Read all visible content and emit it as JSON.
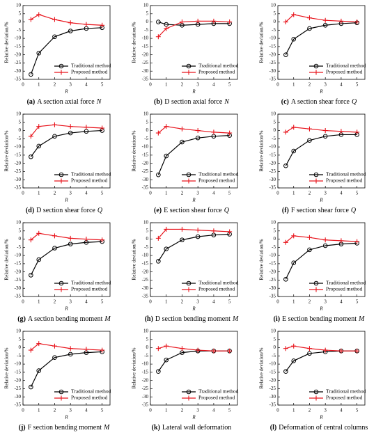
{
  "chart_data": [
    {
      "type": "line",
      "xlabel": "R",
      "ylabel": "Relative deviation/%",
      "x": [
        0.5,
        1,
        2,
        3,
        4,
        5
      ],
      "xlim": [
        0,
        5.5
      ],
      "xticks": [
        0,
        1,
        2,
        3,
        4,
        5
      ],
      "ylim": [
        -35,
        10
      ],
      "yticks": [
        -35,
        -30,
        -25,
        -20,
        -15,
        -10,
        -5,
        0,
        5,
        10
      ],
      "series": [
        {
          "name": "Traditional method",
          "color": "#000000",
          "marker": "circle",
          "values": [
            -32,
            -19,
            -9,
            -5.5,
            -4,
            -3.5
          ]
        },
        {
          "name": "Proposed method",
          "color": "#e8141c",
          "marker": "plus",
          "values": [
            1.5,
            4.5,
            1.5,
            -0.5,
            -1.5,
            -2
          ]
        }
      ],
      "caption_label": "(a)",
      "caption_text": "A section axial force",
      "caption_symbol": "N"
    },
    {
      "type": "line",
      "xlabel": "R",
      "ylabel": "Relative deviation/%",
      "x": [
        0.5,
        1,
        2,
        3,
        4,
        5
      ],
      "xlim": [
        0,
        5.5
      ],
      "xticks": [
        0,
        1,
        2,
        3,
        4,
        5
      ],
      "ylim": [
        -35,
        10
      ],
      "yticks": [
        -35,
        -30,
        -25,
        -20,
        -15,
        -10,
        -5,
        0,
        5,
        10
      ],
      "series": [
        {
          "name": "Traditional method",
          "color": "#000000",
          "marker": "circle",
          "values": [
            0,
            -1.5,
            -2,
            -1.5,
            -1,
            -1
          ]
        },
        {
          "name": "Proposed method",
          "color": "#e8141c",
          "marker": "plus",
          "values": [
            -9,
            -4,
            0,
            0.5,
            0.5,
            0
          ]
        }
      ],
      "caption_label": "(b)",
      "caption_text": "D section axial force",
      "caption_symbol": "N"
    },
    {
      "type": "line",
      "xlabel": "R",
      "ylabel": "Relative deviation/%",
      "x": [
        0.5,
        1,
        2,
        3,
        4,
        5
      ],
      "xlim": [
        0,
        5.5
      ],
      "xticks": [
        0,
        1,
        2,
        3,
        4,
        5
      ],
      "ylim": [
        -35,
        10
      ],
      "yticks": [
        -35,
        -30,
        -25,
        -20,
        -15,
        -10,
        -5,
        0,
        5,
        10
      ],
      "series": [
        {
          "name": "Traditional method",
          "color": "#000000",
          "marker": "circle",
          "values": [
            -20,
            -10.5,
            -4,
            -2,
            -1,
            -0.5
          ]
        },
        {
          "name": "Proposed method",
          "color": "#e8141c",
          "marker": "plus",
          "values": [
            0,
            4.5,
            2.5,
            1,
            0.5,
            0
          ]
        }
      ],
      "caption_label": "(c)",
      "caption_text": "A section shear force",
      "caption_symbol": "Q"
    },
    {
      "type": "line",
      "xlabel": "R",
      "ylabel": "Relative deviation/%",
      "x": [
        0.5,
        1,
        2,
        3,
        4,
        5
      ],
      "xlim": [
        0,
        5.5
      ],
      "xticks": [
        0,
        1,
        2,
        3,
        4,
        5
      ],
      "ylim": [
        -35,
        10
      ],
      "yticks": [
        -35,
        -30,
        -25,
        -20,
        -15,
        -10,
        -5,
        0,
        5,
        10
      ],
      "series": [
        {
          "name": "Traditional method",
          "color": "#000000",
          "marker": "circle",
          "values": [
            -16,
            -9.5,
            -3.5,
            -1.5,
            -0.5,
            0
          ]
        },
        {
          "name": "Proposed method",
          "color": "#e8141c",
          "marker": "plus",
          "values": [
            -3.5,
            2.5,
            3.5,
            2.5,
            2,
            1.5
          ]
        }
      ],
      "caption_label": "(d)",
      "caption_text": "D section shear force",
      "caption_symbol": "Q"
    },
    {
      "type": "line",
      "xlabel": "R",
      "ylabel": "Relative deviation/%",
      "x": [
        0.5,
        1,
        2,
        3,
        4,
        5
      ],
      "xlim": [
        0,
        5.5
      ],
      "xticks": [
        0,
        1,
        2,
        3,
        4,
        5
      ],
      "ylim": [
        -35,
        10
      ],
      "yticks": [
        -35,
        -30,
        -25,
        -20,
        -15,
        -10,
        -5,
        0,
        5,
        10
      ],
      "series": [
        {
          "name": "Traditional method",
          "color": "#000000",
          "marker": "circle",
          "values": [
            -27,
            -15.5,
            -7,
            -4.5,
            -3.5,
            -3
          ]
        },
        {
          "name": "Proposed method",
          "color": "#e8141c",
          "marker": "plus",
          "values": [
            -1.5,
            2.5,
            1,
            0,
            -1,
            -1.5
          ]
        }
      ],
      "caption_label": "(e)",
      "caption_text": "E section shear force",
      "caption_symbol": "Q"
    },
    {
      "type": "line",
      "xlabel": "R",
      "ylabel": "Relative deviation/%",
      "x": [
        0.5,
        1,
        2,
        3,
        4,
        5
      ],
      "xlim": [
        0,
        5.5
      ],
      "xticks": [
        0,
        1,
        2,
        3,
        4,
        5
      ],
      "ylim": [
        -35,
        10
      ],
      "yticks": [
        -35,
        -30,
        -25,
        -20,
        -15,
        -10,
        -5,
        0,
        5,
        10
      ],
      "series": [
        {
          "name": "Traditional method",
          "color": "#000000",
          "marker": "circle",
          "values": [
            -21.5,
            -12.5,
            -6,
            -3.5,
            -2.5,
            -2.5
          ]
        },
        {
          "name": "Proposed method",
          "color": "#e8141c",
          "marker": "plus",
          "values": [
            -1,
            2,
            1,
            0,
            -0.5,
            -1
          ]
        }
      ],
      "caption_label": "(f)",
      "caption_text": "F section shear force",
      "caption_symbol": "Q"
    },
    {
      "type": "line",
      "xlabel": "R",
      "ylabel": "Relative deviation/%",
      "x": [
        0.5,
        1,
        2,
        3,
        4,
        5
      ],
      "xlim": [
        0,
        5.5
      ],
      "xticks": [
        0,
        1,
        2,
        3,
        4,
        5
      ],
      "ylim": [
        -35,
        10
      ],
      "yticks": [
        -35,
        -30,
        -25,
        -20,
        -15,
        -10,
        -5,
        0,
        5,
        10
      ],
      "series": [
        {
          "name": "Traditional method",
          "color": "#000000",
          "marker": "circle",
          "values": [
            -22,
            -12.5,
            -5.5,
            -3,
            -2,
            -1.5
          ]
        },
        {
          "name": "Proposed method",
          "color": "#e8141c",
          "marker": "plus",
          "values": [
            -0.5,
            3.5,
            2,
            0.5,
            0,
            -0.5
          ]
        }
      ],
      "caption_label": "(g)",
      "caption_text": "A section bending moment",
      "caption_symbol": "M"
    },
    {
      "type": "line",
      "xlabel": "R",
      "ylabel": "Relative deviation/%",
      "x": [
        0.5,
        1,
        2,
        3,
        4,
        5
      ],
      "xlim": [
        0,
        5.5
      ],
      "xticks": [
        0,
        1,
        2,
        3,
        4,
        5
      ],
      "ylim": [
        -35,
        10
      ],
      "yticks": [
        -35,
        -30,
        -25,
        -20,
        -15,
        -10,
        -5,
        0,
        5,
        10
      ],
      "series": [
        {
          "name": "Traditional method",
          "color": "#000000",
          "marker": "circle",
          "values": [
            -13.5,
            -6,
            -0.5,
            1.5,
            2.5,
            3
          ]
        },
        {
          "name": "Proposed method",
          "color": "#e8141c",
          "marker": "plus",
          "values": [
            0.5,
            6,
            6,
            5.5,
            5,
            4.5
          ]
        }
      ],
      "caption_label": "(h)",
      "caption_text": "D section bending moment",
      "caption_symbol": "M"
    },
    {
      "type": "line",
      "xlabel": "R",
      "ylabel": "Relative deviation/%",
      "x": [
        0.5,
        1,
        2,
        3,
        4,
        5
      ],
      "xlim": [
        0,
        5.5
      ],
      "xticks": [
        0,
        1,
        2,
        3,
        4,
        5
      ],
      "ylim": [
        -35,
        10
      ],
      "yticks": [
        -35,
        -30,
        -25,
        -20,
        -15,
        -10,
        -5,
        0,
        5,
        10
      ],
      "series": [
        {
          "name": "Traditional method",
          "color": "#000000",
          "marker": "circle",
          "values": [
            -24.5,
            -14.5,
            -6.5,
            -4,
            -3,
            -2.5
          ]
        },
        {
          "name": "Proposed method",
          "color": "#e8141c",
          "marker": "plus",
          "values": [
            -2,
            2,
            1,
            -0.5,
            -1,
            -1.5
          ]
        }
      ],
      "caption_label": "(i)",
      "caption_text": "E section bending moment",
      "caption_symbol": "M"
    },
    {
      "type": "line",
      "xlabel": "R",
      "ylabel": "Relative deviation/%",
      "x": [
        0.5,
        1,
        2,
        3,
        4,
        5
      ],
      "xlim": [
        0,
        5.5
      ],
      "xticks": [
        0,
        1,
        2,
        3,
        4,
        5
      ],
      "ylim": [
        -35,
        10
      ],
      "yticks": [
        -35,
        -30,
        -25,
        -20,
        -15,
        -10,
        -5,
        0,
        5,
        10
      ],
      "series": [
        {
          "name": "Traditional method",
          "color": "#000000",
          "marker": "circle",
          "values": [
            -24,
            -14,
            -6,
            -4,
            -3,
            -2.5
          ]
        },
        {
          "name": "Proposed method",
          "color": "#e8141c",
          "marker": "plus",
          "values": [
            -1.5,
            2.5,
            1,
            -0.5,
            -1,
            -1.5
          ]
        }
      ],
      "caption_label": "(j)",
      "caption_text": "F section bending moment",
      "caption_symbol": "M"
    },
    {
      "type": "line",
      "xlabel": "R",
      "ylabel": "Relative deviation/%",
      "x": [
        0.5,
        1,
        2,
        3,
        4,
        5
      ],
      "xlim": [
        0,
        5.5
      ],
      "xticks": [
        0,
        1,
        2,
        3,
        4,
        5
      ],
      "ylim": [
        -35,
        10
      ],
      "yticks": [
        -35,
        -30,
        -25,
        -20,
        -15,
        -10,
        -5,
        0,
        5,
        10
      ],
      "series": [
        {
          "name": "Traditional method",
          "color": "#000000",
          "marker": "circle",
          "values": [
            -14.5,
            -7.5,
            -3,
            -2,
            -2,
            -2
          ]
        },
        {
          "name": "Proposed method",
          "color": "#e8141c",
          "marker": "plus",
          "values": [
            -0.5,
            1,
            -0.5,
            -1.5,
            -2,
            -2
          ]
        }
      ],
      "caption_label": "(k)",
      "caption_text": "Lateral wall deformation"
    },
    {
      "type": "line",
      "xlabel": "R",
      "ylabel": "Relative deviation/%",
      "x": [
        0.5,
        1,
        2,
        3,
        4,
        5
      ],
      "xlim": [
        0,
        5.5
      ],
      "xticks": [
        0,
        1,
        2,
        3,
        4,
        5
      ],
      "ylim": [
        -35,
        10
      ],
      "yticks": [
        -35,
        -30,
        -25,
        -20,
        -15,
        -10,
        -5,
        0,
        5,
        10
      ],
      "series": [
        {
          "name": "Traditional method",
          "color": "#000000",
          "marker": "circle",
          "values": [
            -14.5,
            -8,
            -3.5,
            -2.5,
            -2,
            -2
          ]
        },
        {
          "name": "Proposed method",
          "color": "#e8141c",
          "marker": "plus",
          "values": [
            -0.5,
            1,
            -0.5,
            -1.5,
            -2,
            -2
          ]
        }
      ],
      "caption_label": "(l)",
      "caption_text": "Deformation of central columns"
    }
  ]
}
